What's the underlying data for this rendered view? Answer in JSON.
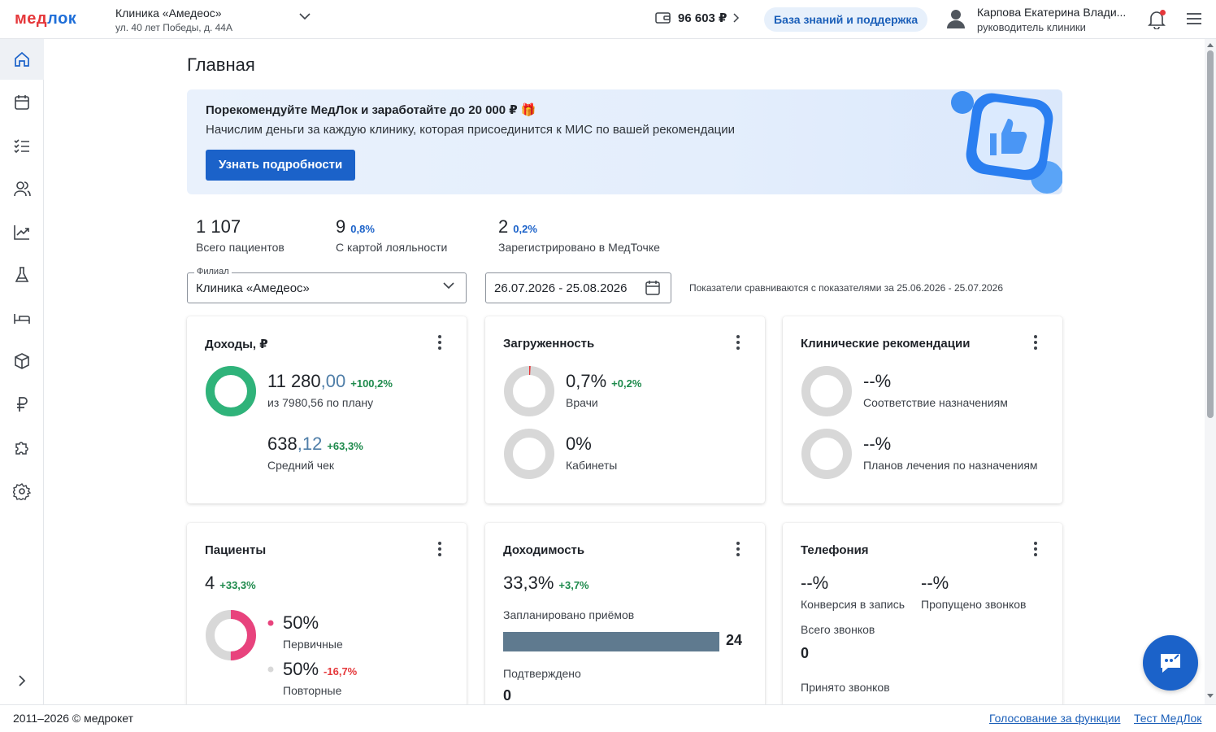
{
  "header": {
    "logo_part1": "мед",
    "logo_part2": "лок",
    "clinic_name": "Клиника «Амедеос»",
    "clinic_address": "ул. 40 лет Победы, д. 44А",
    "balance": "96 603 ₽",
    "support_label": "База знаний и поддержка",
    "user_name": "Карпова Екатерина Влади...",
    "user_role": "руководитель клиники"
  },
  "sidebar": {
    "items": [
      {
        "icon": "home-icon",
        "active": true
      },
      {
        "icon": "calendar-icon"
      },
      {
        "icon": "checklist-icon"
      },
      {
        "icon": "users-icon"
      },
      {
        "icon": "analytics-icon"
      },
      {
        "icon": "flask-icon"
      },
      {
        "icon": "bed-icon"
      },
      {
        "icon": "box-icon"
      },
      {
        "icon": "ruble-icon"
      },
      {
        "icon": "puzzle-icon"
      },
      {
        "icon": "gear-icon"
      }
    ],
    "expand_icon": "chevron-right-icon"
  },
  "page": {
    "title": "Главная"
  },
  "banner": {
    "title": "Порекомендуйте МедЛок и заработайте до 20 000 ₽ 🎁",
    "subtitle": "Начислим деньги за каждую клинику, которая присоединится к МИС по вашей рекомендации",
    "button": "Узнать подробности"
  },
  "stats": [
    {
      "value": "1 107",
      "pct": "",
      "label": "Всего пациентов"
    },
    {
      "value": "9",
      "pct": "0,8%",
      "label": "С картой лояльности"
    },
    {
      "value": "2",
      "pct": "0,2%",
      "label": "Зарегистрировано в МедТочке"
    }
  ],
  "filters": {
    "branch_legend": "Филиал",
    "branch_value": "Клиника «Амедеос»",
    "date_range": "26.07.2026 - 25.08.2026",
    "compare_note": "Показатели сравниваются с показателями за 25.06.2026 - 25.07.2026"
  },
  "cards": {
    "income": {
      "title": "Доходы, ₽",
      "value_int": "11 280",
      "value_frac": ",00",
      "delta": "+100,2%",
      "plan": "из 7980,56 по плану",
      "avg_int": "638",
      "avg_frac": ",12",
      "avg_delta": "+63,3%",
      "avg_label": "Средний чек",
      "plan_fill": 1.0
    },
    "load": {
      "title": "Загруженность",
      "doctors_value": "0,7%",
      "doctors_delta": "+0,2%",
      "doctors_label": "Врачи",
      "doctors_fill": 0.007,
      "rooms_value": "0%",
      "rooms_label": "Кабинеты",
      "rooms_fill": 0
    },
    "clinical": {
      "title": "Клинические рекомендации",
      "compliance_value": "--%",
      "compliance_label": "Соответствие назначениям",
      "plans_value": "--%",
      "plans_label": "Планов лечения по назначениям"
    },
    "patients": {
      "title": "Пациенты",
      "value": "4",
      "delta": "+33,3%",
      "primary_value": "50%",
      "primary_label": "Первичные",
      "primary_fraction": 0.5,
      "repeat_value": "50%",
      "repeat_delta": "-16,7%",
      "repeat_label": "Повторные",
      "primary_color": "#e8437d",
      "repeat_color": "#d8d8d8"
    },
    "profitability": {
      "title": "Доходимость",
      "value": "33,3%",
      "delta": "+3,7%",
      "planned_label": "Запланировано приёмов",
      "planned_value": "24",
      "planned_fill": 1.0,
      "confirmed_label": "Подтверждено",
      "confirmed_value": "0"
    },
    "telephony": {
      "title": "Телефония",
      "conversion_value": "--%",
      "conversion_label": "Конверсия в запись",
      "missed_value": "--%",
      "missed_label": "Пропущено звонков",
      "total_label": "Всего звонков",
      "total_value": "0",
      "accepted_label": "Принято звонков"
    }
  },
  "footer": {
    "copyright": "2011–2026 © медрокет",
    "vote_link": "Голосование за функции",
    "test_link": "Тест МедЛок"
  },
  "colors": {
    "accent": "#1b62c9",
    "brand_red": "#e5383b",
    "ring_green": "#2fb37a",
    "ring_gray": "#d8d8d8",
    "positive": "#1e8a4c",
    "negative": "#e5383b"
  }
}
